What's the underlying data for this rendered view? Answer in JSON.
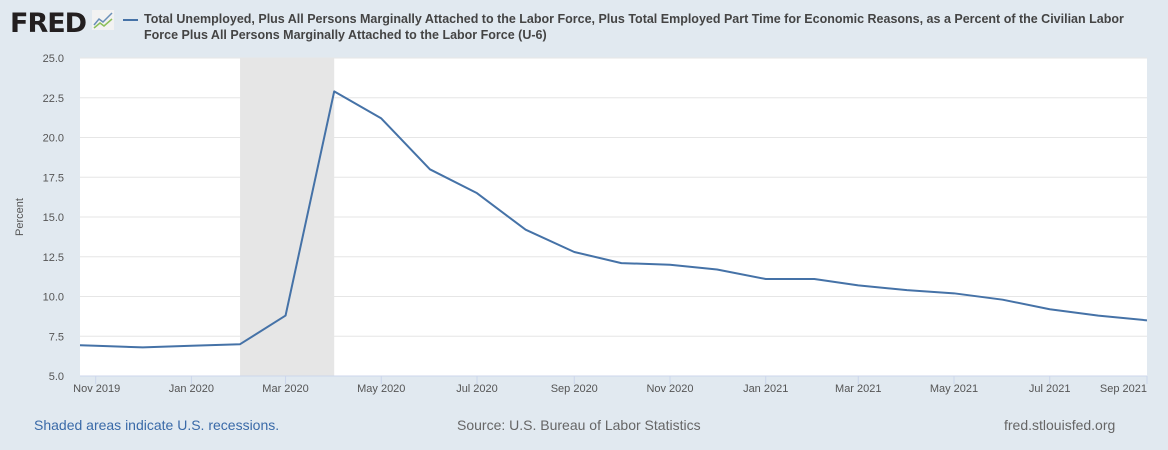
{
  "header": {
    "logo": "FRED",
    "logo_icon": "trend-chart-icon"
  },
  "chart_data": {
    "type": "line",
    "title": "Total Unemployed, Plus All Persons Marginally Attached to the Labor Force, Plus Total Employed Part Time for Economic Reasons, as a Percent of the Civilian Labor Force Plus All Persons Marginally Attached to the Labor Force (U-6)",
    "ylabel": "Percent",
    "xlabel": "",
    "ylim": [
      5.0,
      25.0
    ],
    "xlim": [
      "2019-10-22",
      "2021-09-01"
    ],
    "yticks": [
      "5.0",
      "7.5",
      "10.0",
      "12.5",
      "15.0",
      "17.5",
      "20.0",
      "22.5",
      "25.0"
    ],
    "xticks": [
      {
        "date": "2019-11-01",
        "label": "Nov 2019"
      },
      {
        "date": "2020-01-01",
        "label": "Jan 2020"
      },
      {
        "date": "2020-03-01",
        "label": "Mar 2020"
      },
      {
        "date": "2020-05-01",
        "label": "May 2020"
      },
      {
        "date": "2020-07-01",
        "label": "Jul 2020"
      },
      {
        "date": "2020-09-01",
        "label": "Sep 2020"
      },
      {
        "date": "2020-11-01",
        "label": "Nov 2020"
      },
      {
        "date": "2021-01-01",
        "label": "Jan 2021"
      },
      {
        "date": "2021-03-01",
        "label": "Mar 2021"
      },
      {
        "date": "2021-05-01",
        "label": "May 2021"
      },
      {
        "date": "2021-07-01",
        "label": "Jul 2021"
      },
      {
        "date": "2021-09-01",
        "label": "Sep 2021"
      }
    ],
    "recessions": [
      {
        "start": "2020-02-01",
        "end": "2020-04-01"
      }
    ],
    "grid": true,
    "legend": "top",
    "series": [
      {
        "color": "#4572a7",
        "x": [
          "2019-10-01",
          "2019-11-01",
          "2019-12-01",
          "2020-01-01",
          "2020-02-01",
          "2020-03-01",
          "2020-04-01",
          "2020-05-01",
          "2020-06-01",
          "2020-07-01",
          "2020-08-01",
          "2020-09-01",
          "2020-10-01",
          "2020-11-01",
          "2020-12-01",
          "2021-01-01",
          "2021-02-01",
          "2021-03-01",
          "2021-04-01",
          "2021-05-01",
          "2021-06-01",
          "2021-07-01",
          "2021-08-01",
          "2021-09-01"
        ],
        "y": [
          7.0,
          6.9,
          6.8,
          6.9,
          7.0,
          8.8,
          22.9,
          21.2,
          18.0,
          16.5,
          14.2,
          12.8,
          12.1,
          12.0,
          11.7,
          11.1,
          11.1,
          10.7,
          10.4,
          10.2,
          9.8,
          9.2,
          8.8,
          8.5
        ]
      }
    ]
  },
  "footer": {
    "recession_note": "Shaded areas indicate U.S. recessions.",
    "source": "Source: U.S. Bureau of Labor Statistics",
    "site": "fred.stlouisfed.org"
  }
}
